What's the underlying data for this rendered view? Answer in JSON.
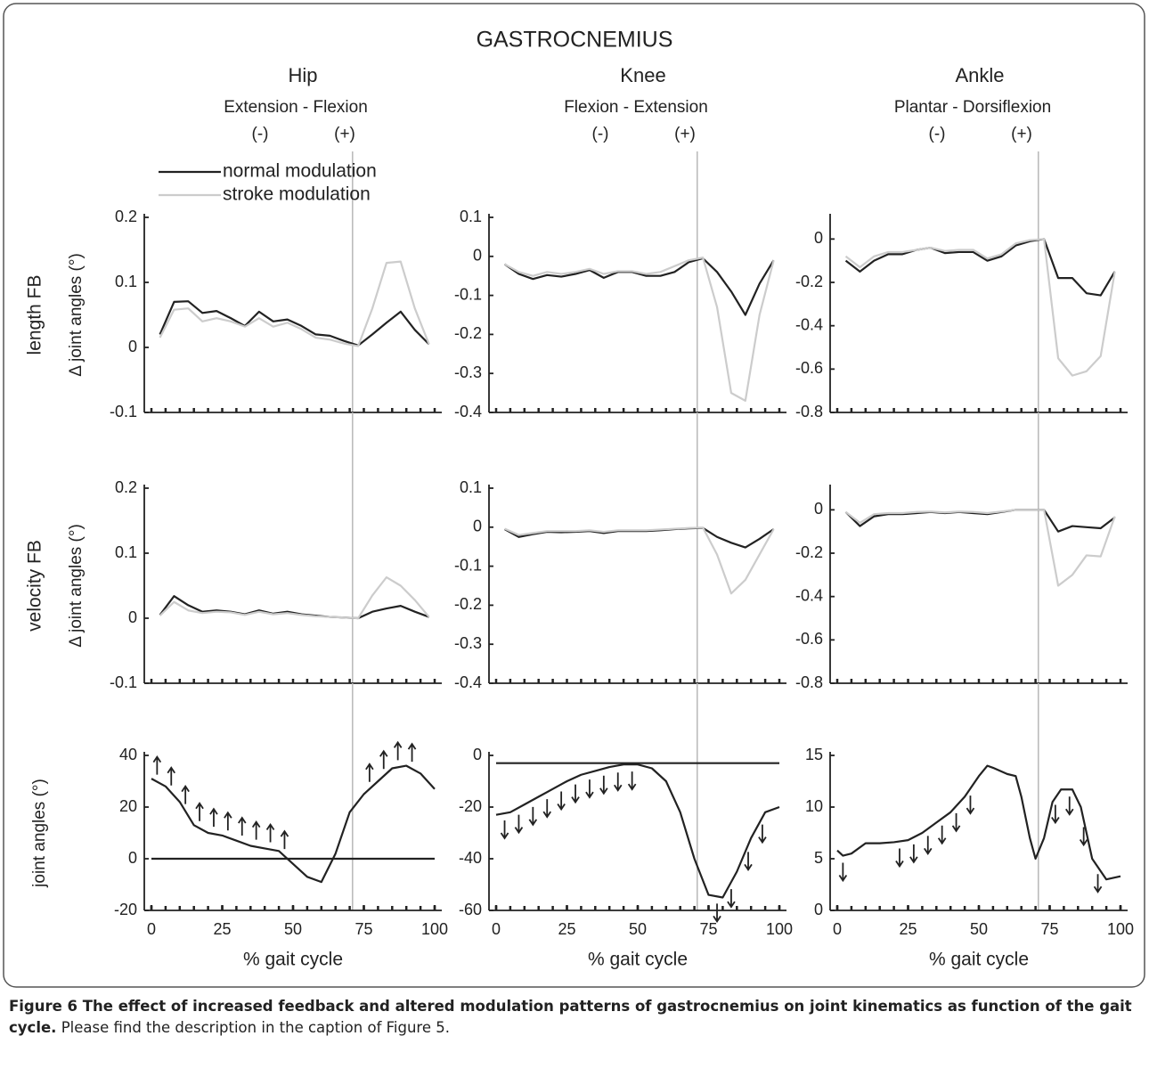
{
  "figure": {
    "title": "GASTROCNEMIUS",
    "columns": [
      {
        "joint": "Hip",
        "motion": "Extension - Flexion",
        "neg": "(-)",
        "pos": "(+)"
      },
      {
        "joint": "Knee",
        "motion": "Flexion - Extension",
        "neg": "(-)",
        "pos": "(+)"
      },
      {
        "joint": "Ankle",
        "motion": "Plantar - Dorsiflexion",
        "neg": "(-)",
        "pos": "(+)"
      }
    ],
    "rows": [
      {
        "label": "length FB",
        "ylabel": "Δ joint angles (°)"
      },
      {
        "label": "velocity FB",
        "ylabel": "Δ joint angles (°)"
      },
      {
        "ylabel": "joint angles (°)"
      }
    ],
    "caption": {
      "bold": "Figure 6 The effect of increased feedback and altered modulation patterns of gastrocnemius on joint kinematics as function of the gait cycle.",
      "text": "Please find the description in the caption of Figure 5."
    }
  },
  "chart_data": [
    {
      "type": "line",
      "legend": "upper left",
      "x": [
        3,
        8,
        13,
        18,
        23,
        28,
        33,
        38,
        43,
        48,
        53,
        58,
        63,
        68,
        73,
        78,
        83,
        88,
        93,
        98
      ],
      "series": [
        {
          "name": "normal modulation",
          "color": "#222222",
          "values": [
            0.02,
            0.07,
            0.071,
            0.053,
            0.056,
            0.045,
            0.033,
            0.055,
            0.04,
            0.043,
            0.033,
            0.02,
            0.018,
            0.01,
            0.003,
            0.02,
            0.038,
            0.055,
            0.027,
            0.005
          ]
        },
        {
          "name": "stroke modulation",
          "color": "#cccccc",
          "values": [
            0.015,
            0.058,
            0.06,
            0.04,
            0.045,
            0.04,
            0.032,
            0.045,
            0.032,
            0.038,
            0.028,
            0.015,
            0.012,
            0.006,
            0.002,
            0.06,
            0.13,
            0.132,
            0.06,
            0.005
          ]
        }
      ],
      "xlim": [
        0,
        100
      ],
      "xminor": 5,
      "ylim": [
        -0.1,
        0.2
      ],
      "yticks": [
        -0.1,
        0,
        0.1,
        0.2
      ],
      "vline": 71
    },
    {
      "type": "line",
      "x": [
        3,
        8,
        13,
        18,
        23,
        28,
        33,
        38,
        43,
        48,
        53,
        58,
        63,
        68,
        73,
        78,
        83,
        88,
        93,
        98
      ],
      "series": [
        {
          "color": "#222222",
          "values": [
            -0.02,
            -0.045,
            -0.058,
            -0.048,
            -0.052,
            -0.045,
            -0.035,
            -0.055,
            -0.04,
            -0.04,
            -0.05,
            -0.05,
            -0.04,
            -0.015,
            -0.005,
            -0.04,
            -0.09,
            -0.15,
            -0.07,
            -0.01
          ]
        },
        {
          "color": "#cccccc",
          "values": [
            -0.02,
            -0.04,
            -0.05,
            -0.04,
            -0.045,
            -0.04,
            -0.032,
            -0.045,
            -0.038,
            -0.038,
            -0.045,
            -0.04,
            -0.025,
            -0.01,
            -0.003,
            -0.13,
            -0.35,
            -0.37,
            -0.15,
            -0.01
          ]
        }
      ],
      "xlim": [
        0,
        100
      ],
      "xminor": 5,
      "ylim": [
        -0.4,
        0.1
      ],
      "yticks": [
        -0.4,
        -0.3,
        -0.2,
        -0.1,
        0,
        0.1
      ],
      "vline": 71
    },
    {
      "type": "line",
      "x": [
        3,
        8,
        13,
        18,
        23,
        28,
        33,
        38,
        43,
        48,
        53,
        58,
        63,
        68,
        73,
        78,
        83,
        88,
        93,
        98
      ],
      "series": [
        {
          "color": "#222222",
          "values": [
            -0.1,
            -0.15,
            -0.1,
            -0.07,
            -0.07,
            -0.05,
            -0.04,
            -0.065,
            -0.06,
            -0.06,
            -0.1,
            -0.08,
            -0.03,
            -0.01,
            0,
            -0.18,
            -0.18,
            -0.25,
            -0.26,
            -0.15
          ]
        },
        {
          "color": "#cccccc",
          "values": [
            -0.08,
            -0.13,
            -0.08,
            -0.06,
            -0.06,
            -0.05,
            -0.04,
            -0.055,
            -0.05,
            -0.05,
            -0.09,
            -0.07,
            -0.02,
            -0.005,
            0,
            -0.55,
            -0.63,
            -0.61,
            -0.54,
            -0.15
          ]
        }
      ],
      "xlim": [
        0,
        100
      ],
      "xminor": 5,
      "ylim": [
        -0.8,
        0.1
      ],
      "yticks": [
        -0.8,
        -0.6,
        -0.4,
        -0.2,
        0
      ],
      "vline": 71
    },
    {
      "type": "line",
      "x": [
        3,
        8,
        13,
        18,
        23,
        28,
        33,
        38,
        43,
        48,
        53,
        58,
        63,
        68,
        73,
        78,
        83,
        88,
        93,
        98
      ],
      "series": [
        {
          "color": "#222222",
          "values": [
            0.005,
            0.034,
            0.02,
            0.01,
            0.012,
            0.01,
            0.006,
            0.012,
            0.007,
            0.01,
            0.006,
            0.004,
            0.002,
            0.001,
            0,
            0.01,
            0.015,
            0.019,
            0.01,
            0.002
          ]
        },
        {
          "color": "#cccccc",
          "values": [
            0.004,
            0.025,
            0.012,
            0.008,
            0.01,
            0.009,
            0.005,
            0.01,
            0.006,
            0.008,
            0.005,
            0.003,
            0.002,
            0.001,
            0,
            0.035,
            0.063,
            0.05,
            0.028,
            0.002
          ]
        }
      ],
      "xlim": [
        0,
        100
      ],
      "xminor": 5,
      "ylim": [
        -0.1,
        0.2
      ],
      "yticks": [
        -0.1,
        0,
        0.1,
        0.2
      ],
      "vline": 71
    },
    {
      "type": "line",
      "x": [
        3,
        8,
        13,
        18,
        23,
        28,
        33,
        38,
        43,
        48,
        53,
        58,
        63,
        68,
        73,
        78,
        83,
        88,
        93,
        98
      ],
      "series": [
        {
          "color": "#222222",
          "values": [
            -0.005,
            -0.025,
            -0.018,
            -0.012,
            -0.013,
            -0.012,
            -0.01,
            -0.015,
            -0.01,
            -0.01,
            -0.01,
            -0.008,
            -0.005,
            -0.003,
            -0.002,
            -0.025,
            -0.04,
            -0.052,
            -0.03,
            -0.005
          ]
        },
        {
          "color": "#cccccc",
          "values": [
            -0.004,
            -0.02,
            -0.015,
            -0.01,
            -0.01,
            -0.01,
            -0.008,
            -0.012,
            -0.008,
            -0.008,
            -0.008,
            -0.006,
            -0.004,
            -0.002,
            -0.001,
            -0.07,
            -0.17,
            -0.135,
            -0.07,
            -0.005
          ]
        }
      ],
      "xlim": [
        0,
        100
      ],
      "xminor": 5,
      "ylim": [
        -0.4,
        0.1
      ],
      "yticks": [
        -0.4,
        -0.3,
        -0.2,
        -0.1,
        0,
        0.1
      ],
      "vline": 71
    },
    {
      "type": "line",
      "x": [
        3,
        8,
        13,
        18,
        23,
        28,
        33,
        38,
        43,
        48,
        53,
        58,
        63,
        68,
        73,
        78,
        83,
        88,
        93,
        98
      ],
      "series": [
        {
          "color": "#222222",
          "values": [
            -0.01,
            -0.075,
            -0.03,
            -0.02,
            -0.02,
            -0.015,
            -0.01,
            -0.015,
            -0.01,
            -0.015,
            -0.02,
            -0.01,
            0,
            0,
            0,
            -0.1,
            -0.075,
            -0.08,
            -0.085,
            -0.035
          ]
        },
        {
          "color": "#cccccc",
          "values": [
            -0.01,
            -0.06,
            -0.02,
            -0.015,
            -0.015,
            -0.01,
            -0.008,
            -0.012,
            -0.008,
            -0.01,
            -0.015,
            -0.008,
            0,
            0,
            0,
            -0.35,
            -0.3,
            -0.21,
            -0.215,
            -0.03
          ]
        }
      ],
      "xlim": [
        0,
        100
      ],
      "xminor": 5,
      "ylim": [
        -0.8,
        0.1
      ],
      "yticks": [
        -0.8,
        -0.6,
        -0.4,
        -0.2,
        0
      ],
      "vline": 71
    },
    {
      "type": "line",
      "xlabel": "% gait cycle",
      "x": [
        0,
        5,
        10,
        15,
        20,
        25,
        30,
        35,
        40,
        45,
        50,
        55,
        60,
        65,
        70,
        75,
        80,
        85,
        90,
        95,
        100
      ],
      "series": [
        {
          "color": "#222222",
          "values": [
            31,
            28,
            22,
            13,
            10,
            9,
            7,
            5,
            4,
            3,
            -2,
            -7,
            -9,
            2,
            18,
            25,
            30,
            35,
            36,
            33,
            27
          ]
        }
      ],
      "reference": 0,
      "arrows": {
        "direction": "up",
        "x": [
          2,
          7,
          12,
          17,
          22,
          27,
          32,
          37,
          42,
          47,
          77,
          82,
          87,
          92
        ]
      },
      "xlim": [
        0,
        100
      ],
      "xminor": 5,
      "xticks": [
        0,
        25,
        50,
        75,
        100
      ],
      "ylim": [
        -20,
        40
      ],
      "yticks": [
        -20,
        0,
        20,
        40
      ],
      "vline": 71
    },
    {
      "type": "line",
      "xlabel": "% gait cycle",
      "x": [
        0,
        5,
        10,
        15,
        20,
        25,
        30,
        35,
        40,
        45,
        50,
        55,
        60,
        65,
        70,
        75,
        80,
        85,
        90,
        95,
        100
      ],
      "series": [
        {
          "color": "#222222",
          "values": [
            -23,
            -22,
            -19,
            -16,
            -13,
            -10,
            -7.5,
            -6,
            -4.5,
            -3.5,
            -3.5,
            -5,
            -10,
            -22,
            -40,
            -54,
            -55,
            -45,
            -32,
            -22,
            -20
          ]
        }
      ],
      "reference": -3,
      "arrows": {
        "direction": "down",
        "x": [
          3,
          8,
          13,
          18,
          23,
          28,
          33,
          38,
          43,
          48,
          78,
          83,
          89,
          94
        ]
      },
      "xlim": [
        0,
        100
      ],
      "xminor": 5,
      "xticks": [
        0,
        25,
        50,
        75,
        100
      ],
      "ylim": [
        -60,
        0
      ],
      "yticks": [
        -60,
        -40,
        -20,
        0
      ],
      "vline": 71
    },
    {
      "type": "line",
      "xlabel": "% gait cycle",
      "x": [
        0,
        2,
        5,
        10,
        15,
        20,
        25,
        30,
        35,
        40,
        45,
        50,
        53,
        55,
        60,
        63,
        65,
        68,
        70,
        73,
        76,
        79,
        83,
        86,
        90,
        95,
        100
      ],
      "series": [
        {
          "color": "#222222",
          "values": [
            5.8,
            5.3,
            5.5,
            6.5,
            6.5,
            6.6,
            6.8,
            7.5,
            8.5,
            9.5,
            11,
            13,
            14,
            13.8,
            13.2,
            13,
            11,
            7,
            5,
            7,
            10.5,
            11.7,
            11.7,
            10,
            5,
            3,
            3.3
          ]
        }
      ],
      "arrows": {
        "direction": "down",
        "x": [
          2,
          22,
          27,
          32,
          37,
          42,
          47,
          77,
          82,
          87,
          92
        ]
      },
      "xlim": [
        0,
        100
      ],
      "xminor": 5,
      "xticks": [
        0,
        25,
        50,
        75,
        100
      ],
      "ylim": [
        0,
        15
      ],
      "yticks": [
        0,
        5,
        10,
        15
      ],
      "vline": 71
    }
  ]
}
